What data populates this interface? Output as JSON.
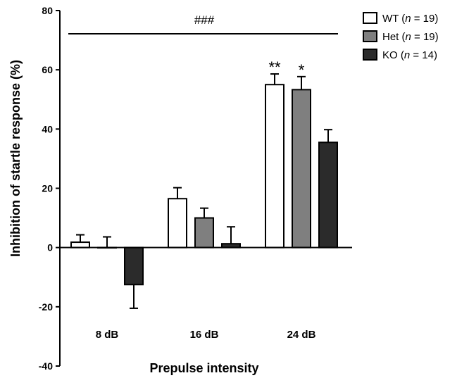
{
  "chart_data": {
    "type": "bar",
    "xlabel": "Prepulse intensity",
    "ylabel": "Inhibition of startle response (%)",
    "ylim": [
      -40,
      80
    ],
    "yticks": [
      -40,
      -20,
      0,
      20,
      40,
      60,
      80
    ],
    "categories": [
      "8 dB",
      "16 dB",
      "24 dB"
    ],
    "legend_position": "top-right",
    "series": [
      {
        "key": "WT",
        "legend_main": "WT (",
        "legend_n": "n",
        "legend_rest": " = 19)",
        "color": "#ffffff",
        "values": [
          1.8,
          16.5,
          55.0
        ],
        "errors": [
          2.5,
          3.7,
          3.6
        ]
      },
      {
        "key": "Het",
        "legend_main": "Het (",
        "legend_n": "n",
        "legend_rest": " = 19)",
        "color": "#7f7f7f",
        "values": [
          0.0,
          10.0,
          53.3
        ],
        "errors": [
          3.6,
          3.3,
          4.4
        ]
      },
      {
        "key": "KO",
        "legend_main": "KO (",
        "legend_n": "n",
        "legend_rest": " = 14)",
        "color": "#2b2b2b",
        "values": [
          -12.5,
          1.3,
          35.5
        ],
        "errors": [
          8.0,
          5.7,
          4.3
        ]
      }
    ],
    "annotations": {
      "overall": "###",
      "stars": [
        {
          "category": "24 dB",
          "series": "WT",
          "text": "**"
        },
        {
          "category": "24 dB",
          "series": "Het",
          "text": "*"
        }
      ]
    }
  }
}
